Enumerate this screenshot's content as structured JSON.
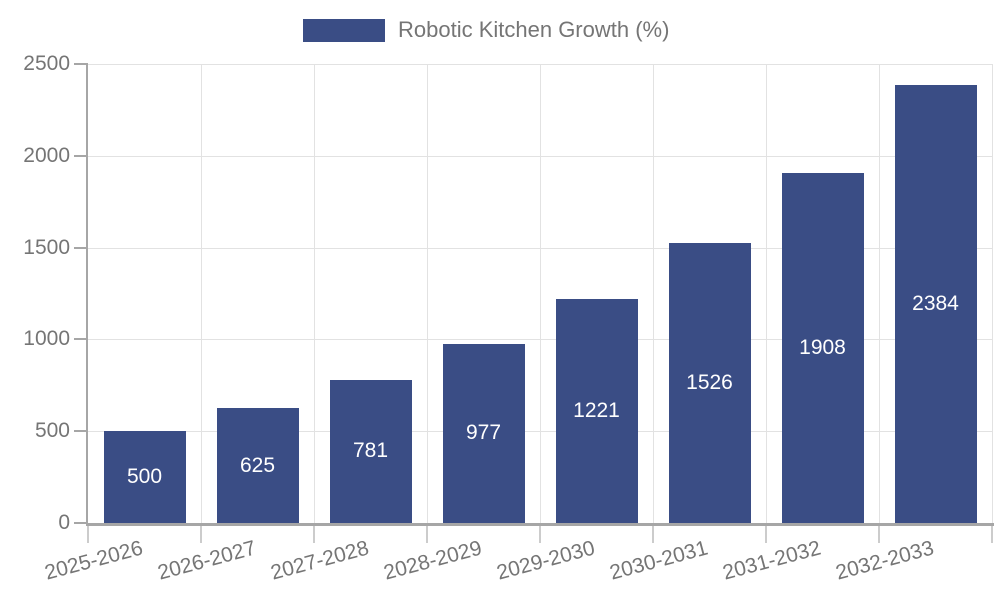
{
  "chart_data": {
    "type": "bar",
    "title": "",
    "legend": {
      "label": "Robotic Kitchen Growth (%)",
      "position": "top-center"
    },
    "categories": [
      "2025-2026",
      "2026-2027",
      "2027-2028",
      "2028-2029",
      "2029-2030",
      "2030-2031",
      "2031-2032",
      "2032-2033"
    ],
    "series": [
      {
        "name": "Robotic Kitchen Growth (%)",
        "values": [
          500,
          625,
          781,
          977,
          1221,
          1526,
          1908,
          2384
        ],
        "color": "#3a4d85"
      }
    ],
    "xlabel": "",
    "ylabel": "",
    "ylim": [
      0,
      2500
    ],
    "yticks": [
      0,
      500,
      1000,
      1500,
      2000,
      2500
    ],
    "grid": true,
    "x_tick_rotation_deg": -15,
    "value_labels": {
      "show": true,
      "position": "inside-center",
      "color": "#ffffff"
    }
  }
}
